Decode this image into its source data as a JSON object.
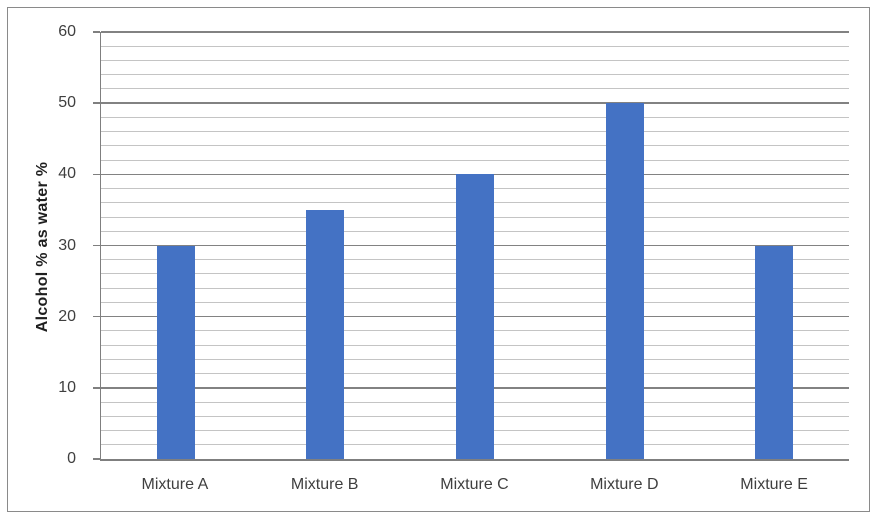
{
  "chart_data": {
    "type": "bar",
    "title": "",
    "categories": [
      "Mixture A",
      "Mixture B",
      "Mixture C",
      "Mixture D",
      "Mixture E"
    ],
    "values": [
      30,
      35,
      40,
      50,
      30
    ],
    "xlabel": "",
    "ylabel": "Alcohol % as water %",
    "ylim": [
      0,
      60
    ],
    "y_major_step": 10,
    "y_minor_step": 2,
    "y_tick_labels": [
      "0",
      "10",
      "20",
      "30",
      "40",
      "50",
      "60"
    ],
    "grid": "horizontal major+minor",
    "legend": "none",
    "bar_color": "#4472C4"
  },
  "colors": {
    "bar": "#4472C4",
    "major_gridline": "#828282",
    "minor_gridline": "#C4C4C4",
    "axis_line": "#7F7F7F",
    "tick_label": "#3F3F3F",
    "axis_title": "#1F1F1F",
    "frame_border": "#8A8A8A",
    "background": "#FFFFFF"
  }
}
